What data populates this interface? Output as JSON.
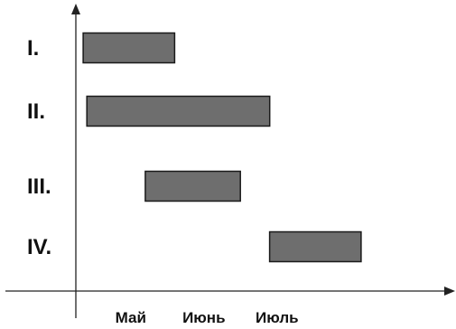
{
  "chart_data": {
    "type": "gantt",
    "x_unit": "month",
    "x_ticks": [
      "Май",
      "Июнь",
      "Июль"
    ],
    "rows": [
      {
        "label": "I.",
        "start": 0.1,
        "end": 1.35
      },
      {
        "label": "II.",
        "start": 0.15,
        "end": 2.65
      },
      {
        "label": "III.",
        "start": 0.95,
        "end": 2.25
      },
      {
        "label": "IV.",
        "start": 2.65,
        "end": 3.9
      }
    ],
    "bar_color": "#6e6e6e",
    "grid": false,
    "legend": "none"
  }
}
